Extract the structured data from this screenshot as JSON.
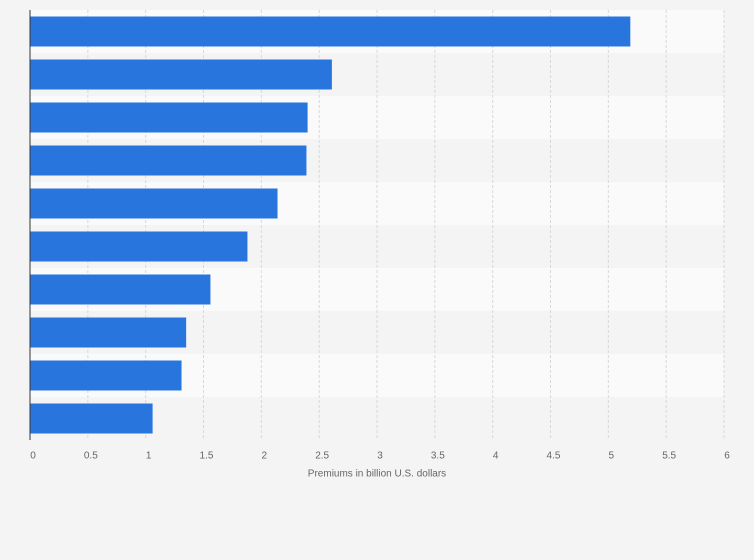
{
  "chart_data": {
    "type": "hbar",
    "categories": [
      null,
      null,
      null,
      null,
      null,
      null,
      null,
      null,
      null,
      null
    ],
    "values": [
      5.19,
      2.61,
      2.4,
      2.39,
      2.14,
      1.88,
      1.56,
      1.35,
      1.31,
      1.06
    ],
    "color": "#2876dd",
    "xlabel": "Premiums in billion U.S. dollars",
    "xlim": [
      0,
      6
    ],
    "xticks": [
      0,
      0.5,
      1,
      1.5,
      2,
      2.5,
      3,
      3.5,
      4,
      4.5,
      5,
      5.5,
      6
    ],
    "grid": true
  }
}
